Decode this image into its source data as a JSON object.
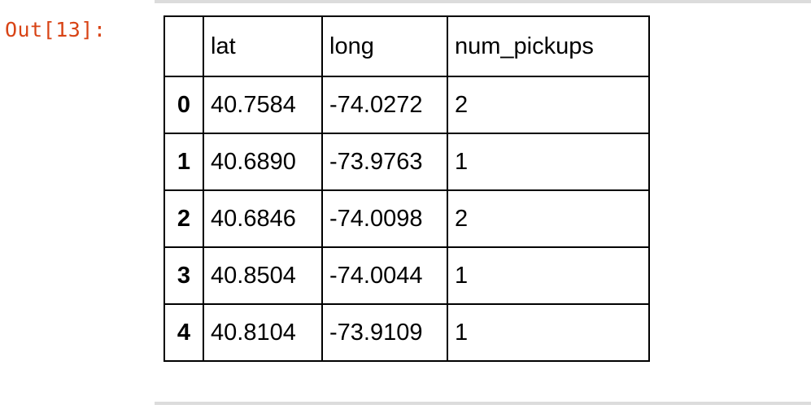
{
  "prompt": {
    "label": "Out[13]:"
  },
  "table": {
    "columns": [
      "lat",
      "long",
      "num_pickups"
    ],
    "rows": [
      {
        "index": "0",
        "lat": "40.7584",
        "long": "-74.0272",
        "num_pickups": "2"
      },
      {
        "index": "1",
        "lat": "40.6890",
        "long": "-73.9763",
        "num_pickups": "1"
      },
      {
        "index": "2",
        "lat": "40.6846",
        "long": "-74.0098",
        "num_pickups": "2"
      },
      {
        "index": "3",
        "lat": "40.8504",
        "long": "-74.0044",
        "num_pickups": "1"
      },
      {
        "index": "4",
        "lat": "40.8104",
        "long": "-73.9109",
        "num_pickups": "1"
      }
    ]
  },
  "colors": {
    "prompt": "#d84315",
    "border": "#000000",
    "cell_border": "#dcdcdc"
  }
}
